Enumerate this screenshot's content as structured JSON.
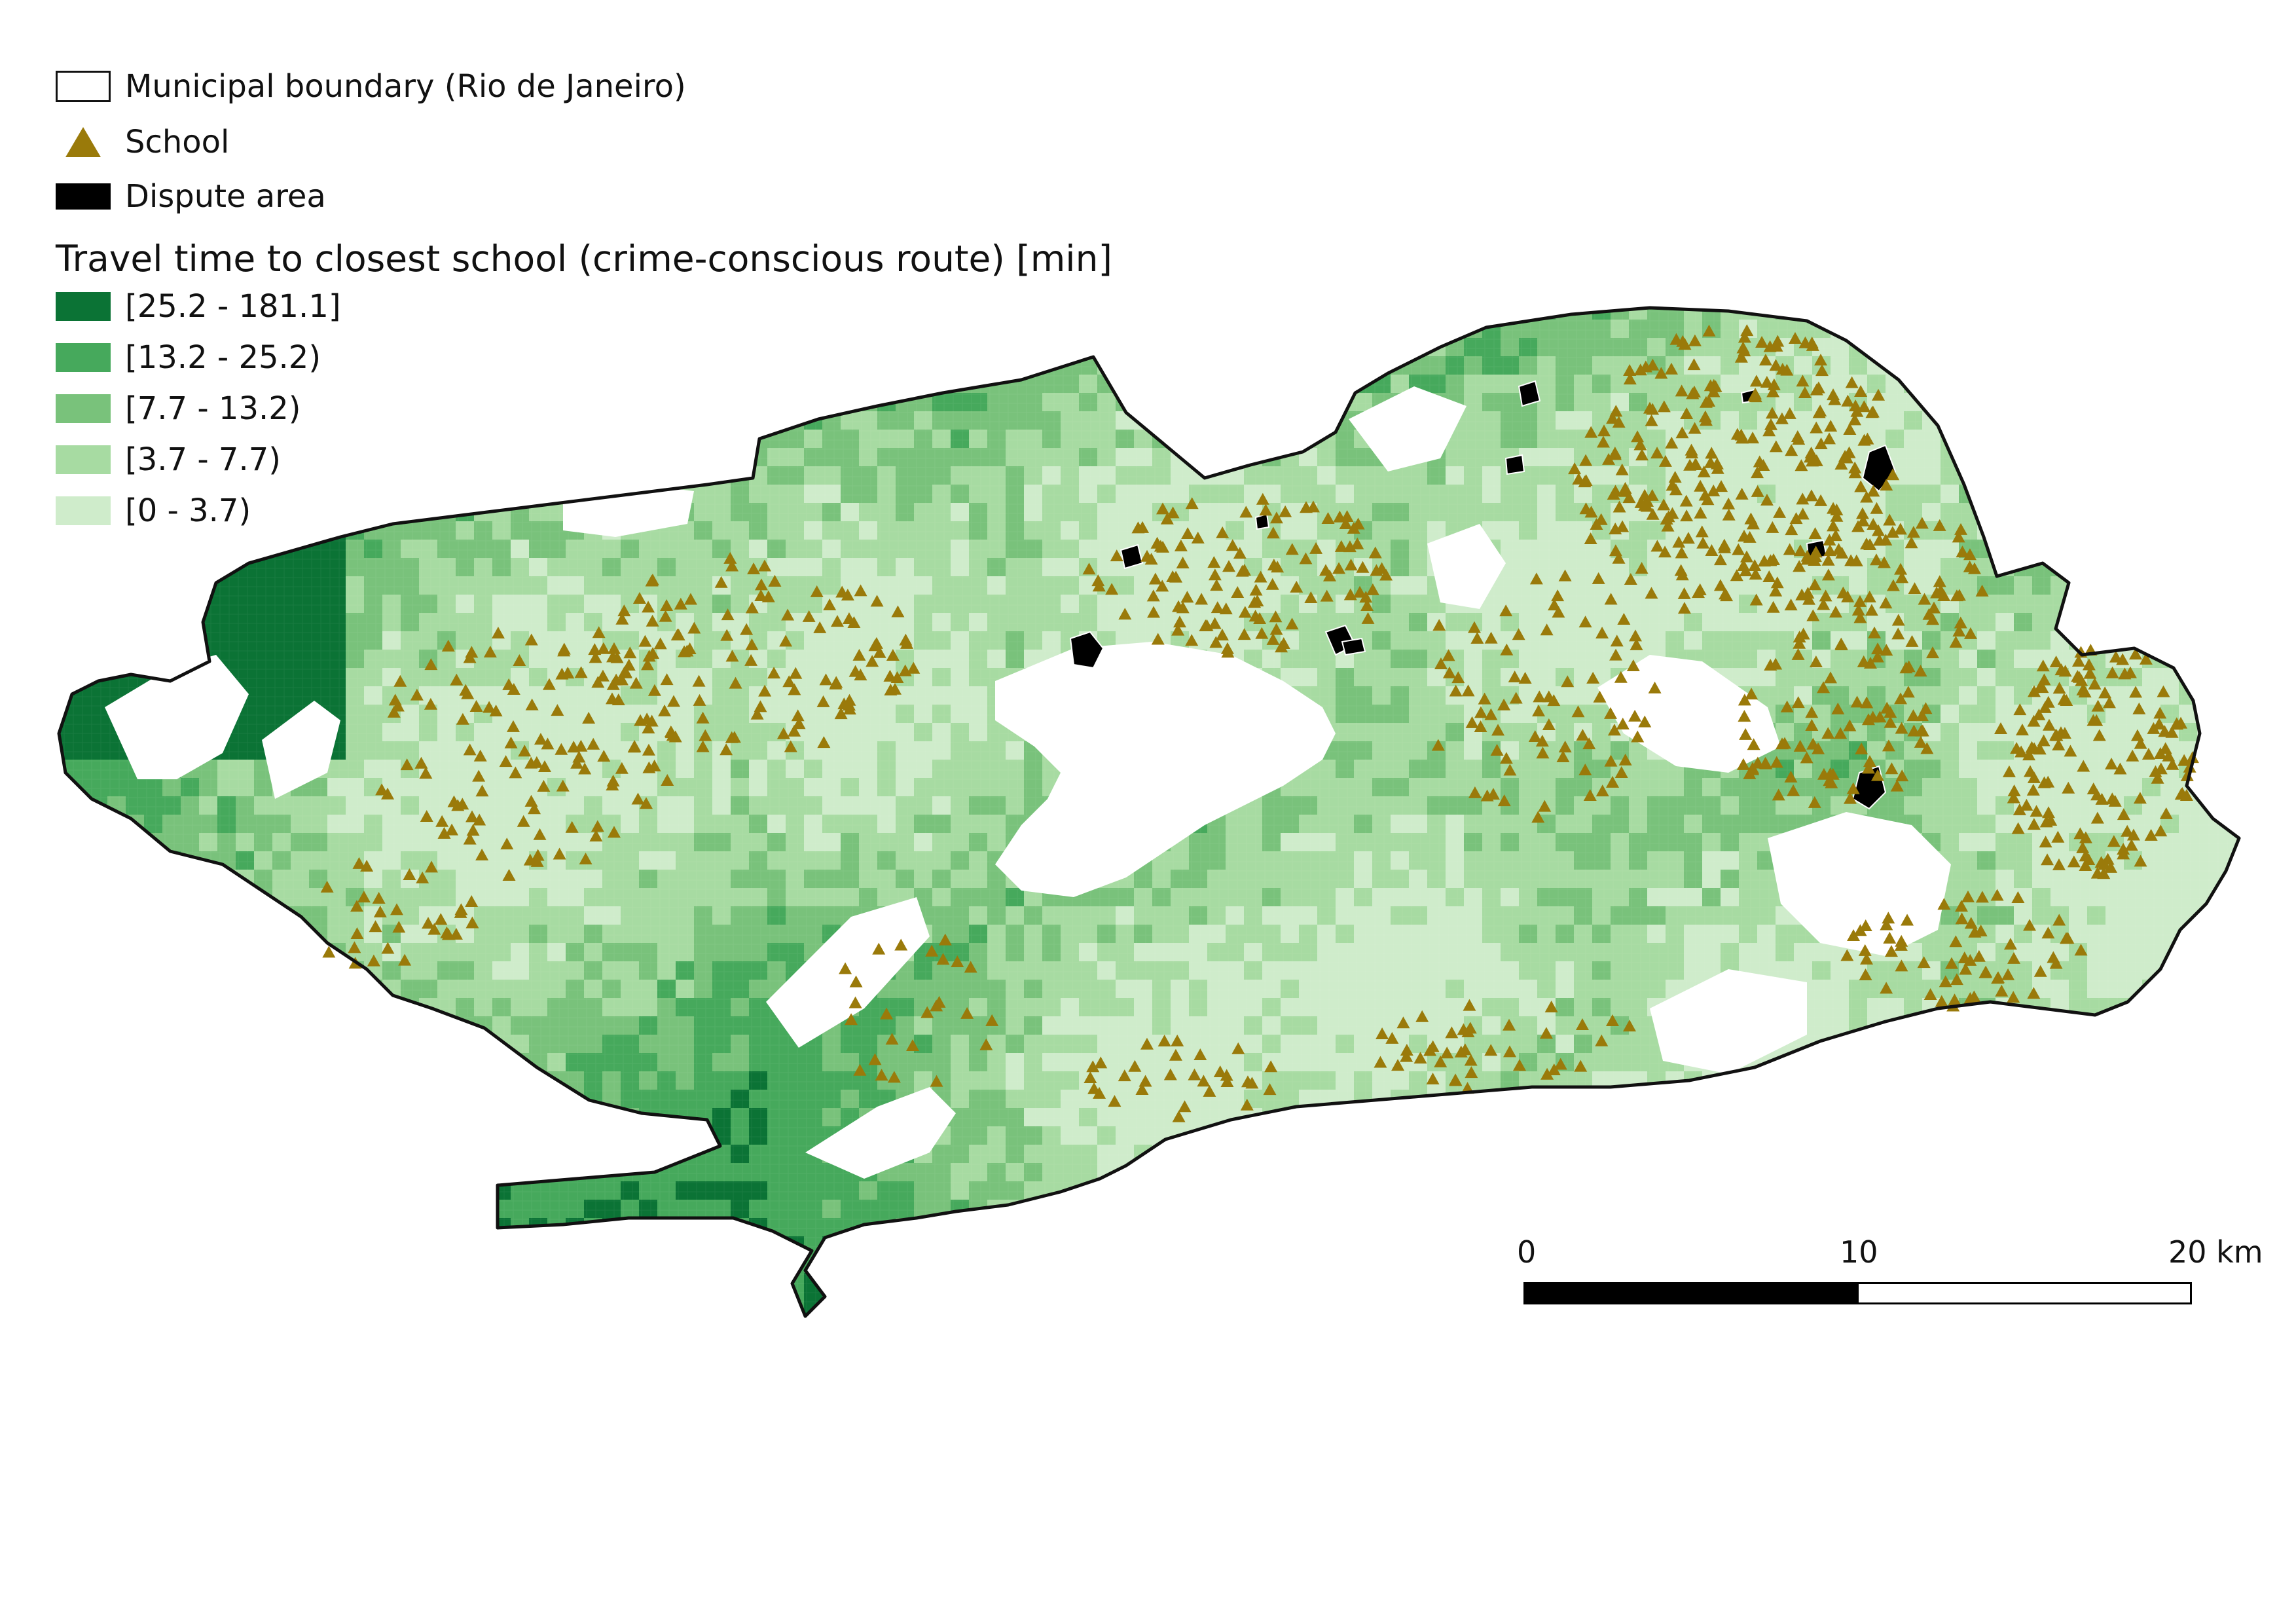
{
  "legend": {
    "boundary_label": "Municipal boundary (Rio de Janeiro)",
    "school_label": "School",
    "dispute_label": "Dispute area",
    "travel_title": "Travel time to closest school (crime-conscious route) [min]",
    "classes": [
      {
        "label": "[25.2 - 181.1]",
        "color": "#0b7335"
      },
      {
        "label": "[13.2 - 25.2)",
        "color": "#46a95c"
      },
      {
        "label": "[7.7 - 13.2)",
        "color": "#79c27b"
      },
      {
        "label": "[3.7 - 7.7)",
        "color": "#a7dba2"
      },
      {
        "label": "[0 - 3.7)",
        "color": "#cfeccb"
      }
    ]
  },
  "scale": {
    "tick_0": "0",
    "tick_10": "10",
    "tick_20": "20 km"
  },
  "colors": {
    "school": "#9a7a0a",
    "dispute": "#000000",
    "boundary": "#111111"
  }
}
